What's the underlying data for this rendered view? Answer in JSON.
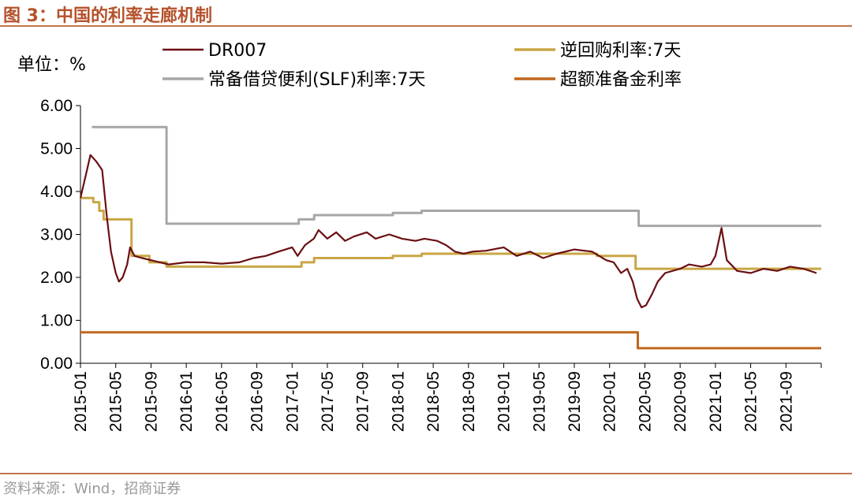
{
  "figure": {
    "title": "图 3：中国的利率走廊机制",
    "source": "资料来源：Wind，招商证券"
  },
  "chart_data": {
    "type": "line",
    "unit_label": "单位：%",
    "ylim": [
      0,
      6
    ],
    "yticks": [
      "0.00",
      "1.00",
      "2.00",
      "3.00",
      "4.00",
      "5.00",
      "6.00"
    ],
    "xlim": [
      "2015-01",
      "2022-01"
    ],
    "xticks": [
      "2015-01",
      "2015-05",
      "2015-09",
      "2016-01",
      "2016-05",
      "2016-09",
      "2017-01",
      "2017-05",
      "2017-09",
      "2018-01",
      "2018-05",
      "2018-09",
      "2019-01",
      "2019-05",
      "2019-09",
      "2020-01",
      "2020-05",
      "2020-09",
      "2021-01",
      "2021-05",
      "2021-09"
    ],
    "legend_position": "top",
    "colors": {
      "DR007": "#6b0f12",
      "reverse_repo": "#c9a645",
      "slf": "#a6a6a6",
      "excess_reserve": "#c0671c"
    },
    "series": [
      {
        "key": "slf",
        "name": "常备借贷便利(SLF)利率:7天",
        "step": true,
        "points": [
          [
            "2015-02-10",
            5.5
          ],
          [
            "2015-10-24",
            3.25
          ],
          [
            "2017-01-24",
            3.35
          ],
          [
            "2017-03-16",
            3.45
          ],
          [
            "2017-12-14",
            3.5
          ],
          [
            "2018-03-22",
            3.55
          ],
          [
            "2020-04-10",
            3.2
          ],
          [
            "2022-01-01",
            3.2
          ]
        ]
      },
      {
        "key": "reverse_repo",
        "name": "逆回购利率:7天",
        "step": true,
        "points": [
          [
            "2015-01-01",
            3.85
          ],
          [
            "2015-02-15",
            3.75
          ],
          [
            "2015-03-05",
            3.55
          ],
          [
            "2015-03-20",
            3.35
          ],
          [
            "2015-06-25",
            2.5
          ],
          [
            "2015-08-26",
            2.35
          ],
          [
            "2015-10-24",
            2.25
          ],
          [
            "2017-02-03",
            2.35
          ],
          [
            "2017-03-16",
            2.45
          ],
          [
            "2017-12-14",
            2.5
          ],
          [
            "2018-03-22",
            2.55
          ],
          [
            "2019-11-18",
            2.5
          ],
          [
            "2020-03-30",
            2.2
          ],
          [
            "2022-01-01",
            2.2
          ]
        ]
      },
      {
        "key": "excess_reserve",
        "name": "超额准备金利率",
        "step": true,
        "points": [
          [
            "2015-01-01",
            0.72
          ],
          [
            "2020-04-07",
            0.35
          ],
          [
            "2022-01-01",
            0.35
          ]
        ]
      },
      {
        "key": "DR007",
        "name": "DR007",
        "step": false,
        "points": [
          [
            "2015-01-01",
            3.85
          ],
          [
            "2015-01-20",
            4.4
          ],
          [
            "2015-02-05",
            4.85
          ],
          [
            "2015-02-25",
            4.7
          ],
          [
            "2015-03-15",
            4.5
          ],
          [
            "2015-04-01",
            3.4
          ],
          [
            "2015-04-15",
            2.6
          ],
          [
            "2015-05-01",
            2.1
          ],
          [
            "2015-05-12",
            1.9
          ],
          [
            "2015-05-25",
            2.0
          ],
          [
            "2015-06-10",
            2.3
          ],
          [
            "2015-06-20",
            2.7
          ],
          [
            "2015-07-05",
            2.5
          ],
          [
            "2015-08-01",
            2.45
          ],
          [
            "2015-09-01",
            2.4
          ],
          [
            "2015-10-01",
            2.35
          ],
          [
            "2015-11-01",
            2.3
          ],
          [
            "2016-01-01",
            2.35
          ],
          [
            "2016-03-01",
            2.35
          ],
          [
            "2016-05-01",
            2.32
          ],
          [
            "2016-07-01",
            2.35
          ],
          [
            "2016-08-20",
            2.45
          ],
          [
            "2016-10-01",
            2.5
          ],
          [
            "2016-11-15",
            2.6
          ],
          [
            "2017-01-01",
            2.7
          ],
          [
            "2017-01-20",
            2.5
          ],
          [
            "2017-02-15",
            2.75
          ],
          [
            "2017-03-15",
            2.9
          ],
          [
            "2017-04-01",
            3.1
          ],
          [
            "2017-05-01",
            2.9
          ],
          [
            "2017-06-01",
            3.05
          ],
          [
            "2017-07-01",
            2.85
          ],
          [
            "2017-08-01",
            2.95
          ],
          [
            "2017-09-15",
            3.05
          ],
          [
            "2017-10-15",
            2.9
          ],
          [
            "2017-12-01",
            3.0
          ],
          [
            "2018-01-15",
            2.9
          ],
          [
            "2018-03-01",
            2.85
          ],
          [
            "2018-04-01",
            2.9
          ],
          [
            "2018-05-15",
            2.85
          ],
          [
            "2018-06-15",
            2.75
          ],
          [
            "2018-07-15",
            2.6
          ],
          [
            "2018-08-15",
            2.55
          ],
          [
            "2018-09-15",
            2.6
          ],
          [
            "2018-11-01",
            2.62
          ],
          [
            "2019-01-01",
            2.7
          ],
          [
            "2019-02-15",
            2.5
          ],
          [
            "2019-04-01",
            2.6
          ],
          [
            "2019-05-15",
            2.45
          ],
          [
            "2019-07-01",
            2.55
          ],
          [
            "2019-09-01",
            2.65
          ],
          [
            "2019-11-01",
            2.6
          ],
          [
            "2019-12-20",
            2.4
          ],
          [
            "2020-01-15",
            2.35
          ],
          [
            "2020-02-10",
            2.1
          ],
          [
            "2020-03-01",
            2.2
          ],
          [
            "2020-03-20",
            1.9
          ],
          [
            "2020-04-05",
            1.5
          ],
          [
            "2020-04-20",
            1.3
          ],
          [
            "2020-05-05",
            1.35
          ],
          [
            "2020-05-25",
            1.6
          ],
          [
            "2020-06-15",
            1.9
          ],
          [
            "2020-07-10",
            2.1
          ],
          [
            "2020-09-01",
            2.2
          ],
          [
            "2020-10-01",
            2.3
          ],
          [
            "2020-11-15",
            2.25
          ],
          [
            "2020-12-15",
            2.3
          ],
          [
            "2021-01-01",
            2.5
          ],
          [
            "2021-01-22",
            3.15
          ],
          [
            "2021-02-10",
            2.4
          ],
          [
            "2021-03-15",
            2.15
          ],
          [
            "2021-05-01",
            2.1
          ],
          [
            "2021-06-15",
            2.2
          ],
          [
            "2021-08-01",
            2.15
          ],
          [
            "2021-09-15",
            2.25
          ],
          [
            "2021-11-01",
            2.2
          ],
          [
            "2021-12-15",
            2.1
          ]
        ]
      }
    ]
  }
}
